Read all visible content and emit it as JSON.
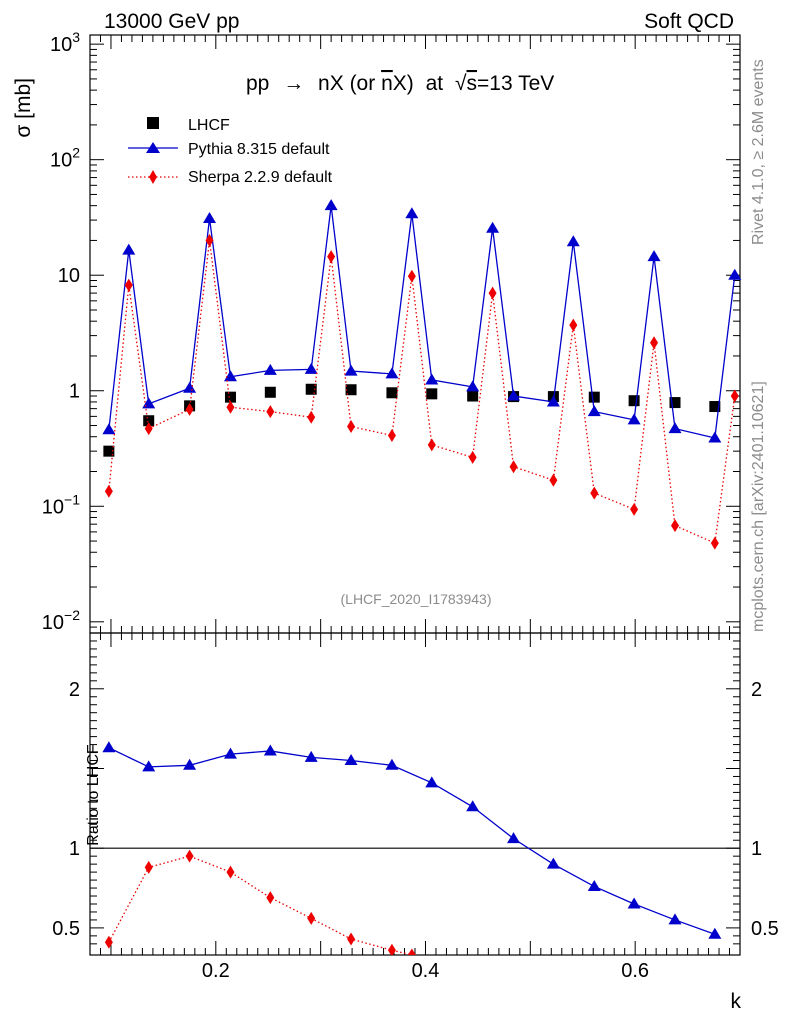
{
  "header": {
    "left": "13000 GeV pp",
    "right": "Soft QCD"
  },
  "side_text": {
    "rivet": "Rivet 4.1.0, ≥ 2.6M events",
    "mcplots": "mcplots.cern.ch [arXiv:2401.10621]"
  },
  "chart_data": [
    {
      "type": "scatter",
      "title": "pp → nX (or n̄X) at √s=13 TeV",
      "title_parts": {
        "prefix": "pp",
        "arrow": "→",
        "middle": "nX (or ",
        "nbar": "n",
        "suffix": "X)",
        "at": "at",
        "sqrt": "√",
        "s": "s",
        "energy": "=13 TeV"
      },
      "ylabel": "σ [mb]",
      "yscale": "log",
      "ylim": [
        0.008,
        1200
      ],
      "xlim": [
        0.08,
        0.7
      ],
      "annotation": "(LHCF_2020_I1783943)",
      "yticks": [
        {
          "value": 0.01,
          "base": "10",
          "exp": "−2"
        },
        {
          "value": 0.1,
          "base": "10",
          "exp": "−1"
        },
        {
          "value": 1,
          "text": "1"
        },
        {
          "value": 10,
          "text": "10"
        },
        {
          "value": 100,
          "base": "10",
          "exp": "2"
        },
        {
          "value": 1000,
          "base": "10",
          "exp": "3"
        }
      ],
      "legend": {
        "position": "top-left",
        "entries": [
          "LHCF",
          "Pythia 8.315 default",
          "Sherpa 2.2.9 default"
        ]
      },
      "series": [
        {
          "name": "LHCF",
          "style": "square",
          "color": "#000000",
          "x": [
            0.098,
            0.136,
            0.175,
            0.214,
            0.252,
            0.291,
            0.329,
            0.368,
            0.406,
            0.445,
            0.484,
            0.522,
            0.561,
            0.599,
            0.638,
            0.676
          ],
          "y": [
            0.3,
            0.55,
            0.74,
            0.88,
            0.97,
            1.03,
            1.02,
            0.96,
            0.94,
            0.9,
            0.89,
            0.89,
            0.88,
            0.82,
            0.79,
            0.73
          ]
        },
        {
          "name": "Pythia 8.315 default",
          "style": "line-triangle",
          "color": "#0000cc",
          "x": [
            0.098,
            0.117,
            0.136,
            0.175,
            0.194,
            0.214,
            0.252,
            0.291,
            0.31,
            0.329,
            0.368,
            0.387,
            0.406,
            0.445,
            0.464,
            0.484,
            0.522,
            0.541,
            0.561,
            0.599,
            0.618,
            0.638,
            0.676,
            0.695
          ],
          "y": [
            0.46,
            16.5,
            0.77,
            1.05,
            31,
            1.32,
            1.5,
            1.53,
            40,
            1.48,
            1.4,
            34,
            1.24,
            1.08,
            25.5,
            0.9,
            0.8,
            19.5,
            0.66,
            0.56,
            14.5,
            0.47,
            0.39,
            10
          ]
        },
        {
          "name": "Sherpa 2.2.9 default",
          "style": "dotted-diamond",
          "color": "#ee0000",
          "x": [
            0.098,
            0.117,
            0.136,
            0.175,
            0.194,
            0.214,
            0.252,
            0.291,
            0.31,
            0.329,
            0.368,
            0.387,
            0.406,
            0.445,
            0.464,
            0.484,
            0.522,
            0.541,
            0.561,
            0.599,
            0.618,
            0.638,
            0.676,
            0.695
          ],
          "y": [
            0.135,
            8.2,
            0.47,
            0.69,
            20,
            0.72,
            0.66,
            0.59,
            14.5,
            0.49,
            0.41,
            9.8,
            0.34,
            0.265,
            7.0,
            0.22,
            0.168,
            3.7,
            0.13,
            0.094,
            2.6,
            0.068,
            0.048,
            0.9
          ]
        }
      ]
    },
    {
      "type": "line",
      "ylabel": "Ratio to LHCF",
      "xlabel": "k",
      "ylim": [
        0.33,
        2.35
      ],
      "xlim": [
        0.08,
        0.7
      ],
      "reference_line": 1,
      "xticks": [
        {
          "value": 0.2,
          "text": "0.2"
        },
        {
          "value": 0.4,
          "text": "0.4"
        },
        {
          "value": 0.6,
          "text": "0.6"
        }
      ],
      "yticks": [
        {
          "value": 0.5,
          "text": "0.5"
        },
        {
          "value": 1,
          "text": "1"
        },
        {
          "value": 2,
          "text": "2"
        }
      ],
      "series": [
        {
          "name": "Pythia 8.315 default",
          "style": "line-triangle",
          "color": "#0000cc",
          "x": [
            0.098,
            0.136,
            0.175,
            0.214,
            0.252,
            0.291,
            0.329,
            0.368,
            0.406,
            0.445,
            0.484,
            0.522,
            0.561,
            0.599,
            0.638,
            0.676
          ],
          "y": [
            1.63,
            1.51,
            1.52,
            1.59,
            1.61,
            1.57,
            1.55,
            1.52,
            1.41,
            1.26,
            1.06,
            0.9,
            0.76,
            0.65,
            0.55,
            0.46
          ]
        },
        {
          "name": "Sherpa 2.2.9 default",
          "style": "dotted-diamond",
          "color": "#ee0000",
          "x": [
            0.098,
            0.136,
            0.175,
            0.214,
            0.252,
            0.291,
            0.329,
            0.368,
            0.387
          ],
          "y": [
            0.41,
            0.88,
            0.95,
            0.85,
            0.69,
            0.56,
            0.43,
            0.36,
            0.33
          ]
        }
      ]
    }
  ]
}
